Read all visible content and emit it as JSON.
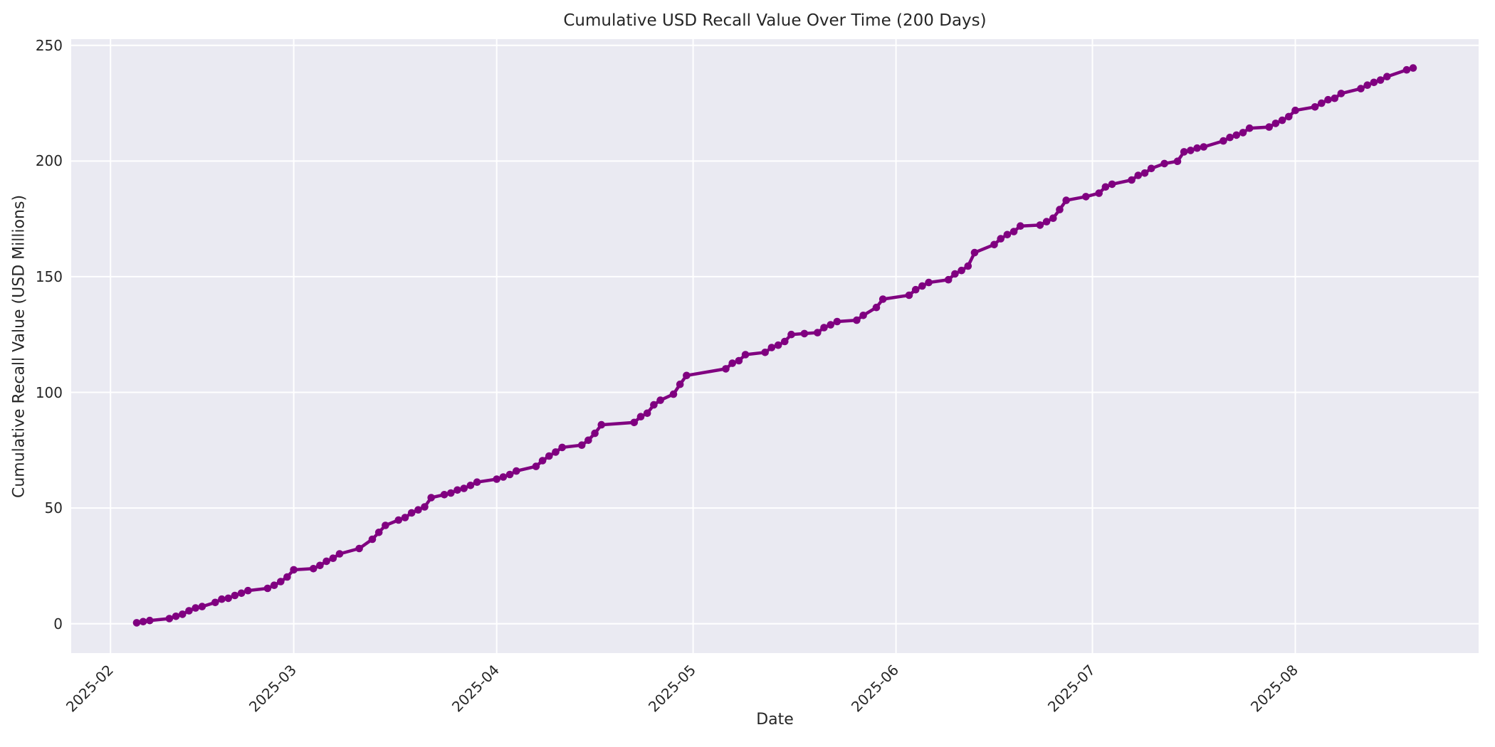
{
  "figure": {
    "background_color": "#ffffff",
    "plot_background_color": "#eaeaf2",
    "grid_color": "#ffffff",
    "text_color": "#262626"
  },
  "chart_data": {
    "type": "line",
    "title": "Cumulative USD Recall Value Over Time (200 Days)",
    "xlabel": "Date",
    "ylabel": "Cumulative Recall Value (USD Millions)",
    "legend_position": "none",
    "grid": true,
    "line_color": "#800080",
    "marker": "circle",
    "marker_color": "#800080",
    "xlim": [
      "2025-01-26",
      "2025-08-29"
    ],
    "ylim": [
      -12.7,
      252.7
    ],
    "x_ticks": [
      {
        "label": "2025-02",
        "date": "2025-02-01"
      },
      {
        "label": "2025-03",
        "date": "2025-03-01"
      },
      {
        "label": "2025-04",
        "date": "2025-04-01"
      },
      {
        "label": "2025-05",
        "date": "2025-05-01"
      },
      {
        "label": "2025-06",
        "date": "2025-06-01"
      },
      {
        "label": "2025-07",
        "date": "2025-07-01"
      },
      {
        "label": "2025-08",
        "date": "2025-08-01"
      }
    ],
    "y_ticks": [
      0,
      50,
      100,
      150,
      200,
      250
    ],
    "series": [
      {
        "name": "Cumulative Recall Value",
        "x": [
          "2025-02-05",
          "2025-02-06",
          "2025-02-07",
          "2025-02-10",
          "2025-02-11",
          "2025-02-12",
          "2025-02-13",
          "2025-02-14",
          "2025-02-15",
          "2025-02-17",
          "2025-02-18",
          "2025-02-19",
          "2025-02-20",
          "2025-02-21",
          "2025-02-22",
          "2025-02-25",
          "2025-02-26",
          "2025-02-27",
          "2025-02-28",
          "2025-03-01",
          "2025-03-04",
          "2025-03-05",
          "2025-03-06",
          "2025-03-07",
          "2025-03-08",
          "2025-03-11",
          "2025-03-13",
          "2025-03-14",
          "2025-03-15",
          "2025-03-17",
          "2025-03-18",
          "2025-03-19",
          "2025-03-20",
          "2025-03-21",
          "2025-03-22",
          "2025-03-24",
          "2025-03-25",
          "2025-03-26",
          "2025-03-27",
          "2025-03-28",
          "2025-03-29",
          "2025-04-01",
          "2025-04-02",
          "2025-04-03",
          "2025-04-04",
          "2025-04-07",
          "2025-04-08",
          "2025-04-09",
          "2025-04-10",
          "2025-04-11",
          "2025-04-14",
          "2025-04-15",
          "2025-04-16",
          "2025-04-17",
          "2025-04-22",
          "2025-04-23",
          "2025-04-24",
          "2025-04-25",
          "2025-04-26",
          "2025-04-28",
          "2025-04-29",
          "2025-04-30",
          "2025-05-06",
          "2025-05-07",
          "2025-05-08",
          "2025-05-09",
          "2025-05-12",
          "2025-05-13",
          "2025-05-14",
          "2025-05-15",
          "2025-05-16",
          "2025-05-18",
          "2025-05-20",
          "2025-05-21",
          "2025-05-22",
          "2025-05-23",
          "2025-05-26",
          "2025-05-27",
          "2025-05-29",
          "2025-05-30",
          "2025-06-03",
          "2025-06-04",
          "2025-06-05",
          "2025-06-06",
          "2025-06-09",
          "2025-06-10",
          "2025-06-11",
          "2025-06-12",
          "2025-06-13",
          "2025-06-16",
          "2025-06-17",
          "2025-06-18",
          "2025-06-19",
          "2025-06-20",
          "2025-06-23",
          "2025-06-24",
          "2025-06-25",
          "2025-06-26",
          "2025-06-27",
          "2025-06-30",
          "2025-07-02",
          "2025-07-03",
          "2025-07-04",
          "2025-07-07",
          "2025-07-08",
          "2025-07-09",
          "2025-07-10",
          "2025-07-12",
          "2025-07-14",
          "2025-07-15",
          "2025-07-16",
          "2025-07-17",
          "2025-07-18",
          "2025-07-21",
          "2025-07-22",
          "2025-07-23",
          "2025-07-24",
          "2025-07-25",
          "2025-07-28",
          "2025-07-29",
          "2025-07-30",
          "2025-07-31",
          "2025-08-01",
          "2025-08-04",
          "2025-08-05",
          "2025-08-06",
          "2025-08-07",
          "2025-08-08",
          "2025-08-11",
          "2025-08-12",
          "2025-08-13",
          "2025-08-14",
          "2025-08-15",
          "2025-08-18",
          "2025-08-19"
        ],
        "y": [
          0.4,
          0.9,
          1.4,
          2.2,
          3.2,
          4.1,
          5.6,
          6.8,
          7.4,
          9.2,
          10.6,
          11.0,
          12.2,
          13.2,
          14.3,
          15.3,
          16.6,
          18.2,
          20.2,
          23.3,
          23.8,
          25.2,
          27.0,
          28.3,
          30.2,
          32.5,
          36.5,
          39.5,
          42.5,
          44.8,
          45.9,
          47.9,
          49.2,
          50.5,
          54.5,
          55.8,
          56.5,
          57.8,
          58.5,
          59.8,
          61.2,
          62.5,
          63.4,
          64.5,
          66.0,
          68.0,
          70.5,
          72.5,
          74.2,
          76.2,
          77.2,
          79.3,
          82.3,
          86.0,
          87.0,
          89.5,
          91.0,
          94.6,
          96.6,
          99.2,
          103.5,
          107.3,
          110.2,
          112.6,
          113.7,
          116.3,
          117.3,
          119.4,
          120.4,
          122.0,
          125.0,
          125.4,
          125.8,
          128.0,
          129.2,
          130.6,
          131.2,
          133.3,
          136.7,
          140.3,
          142.0,
          144.4,
          146.0,
          147.5,
          148.7,
          151.2,
          152.7,
          154.6,
          160.4,
          163.9,
          166.4,
          168.2,
          169.5,
          171.9,
          172.3,
          173.8,
          175.3,
          179.0,
          183.0,
          184.6,
          186.1,
          188.8,
          190.0,
          191.8,
          193.8,
          194.8,
          196.8,
          198.9,
          199.9,
          204.0,
          204.6,
          205.6,
          206.1,
          208.7,
          210.2,
          211.2,
          212.3,
          214.2,
          214.7,
          216.3,
          217.6,
          219.2,
          221.9,
          223.4,
          225.0,
          226.5,
          227.1,
          229.2,
          231.3,
          232.8,
          234.0,
          235.0,
          236.5,
          239.4,
          240.2
        ]
      }
    ]
  }
}
